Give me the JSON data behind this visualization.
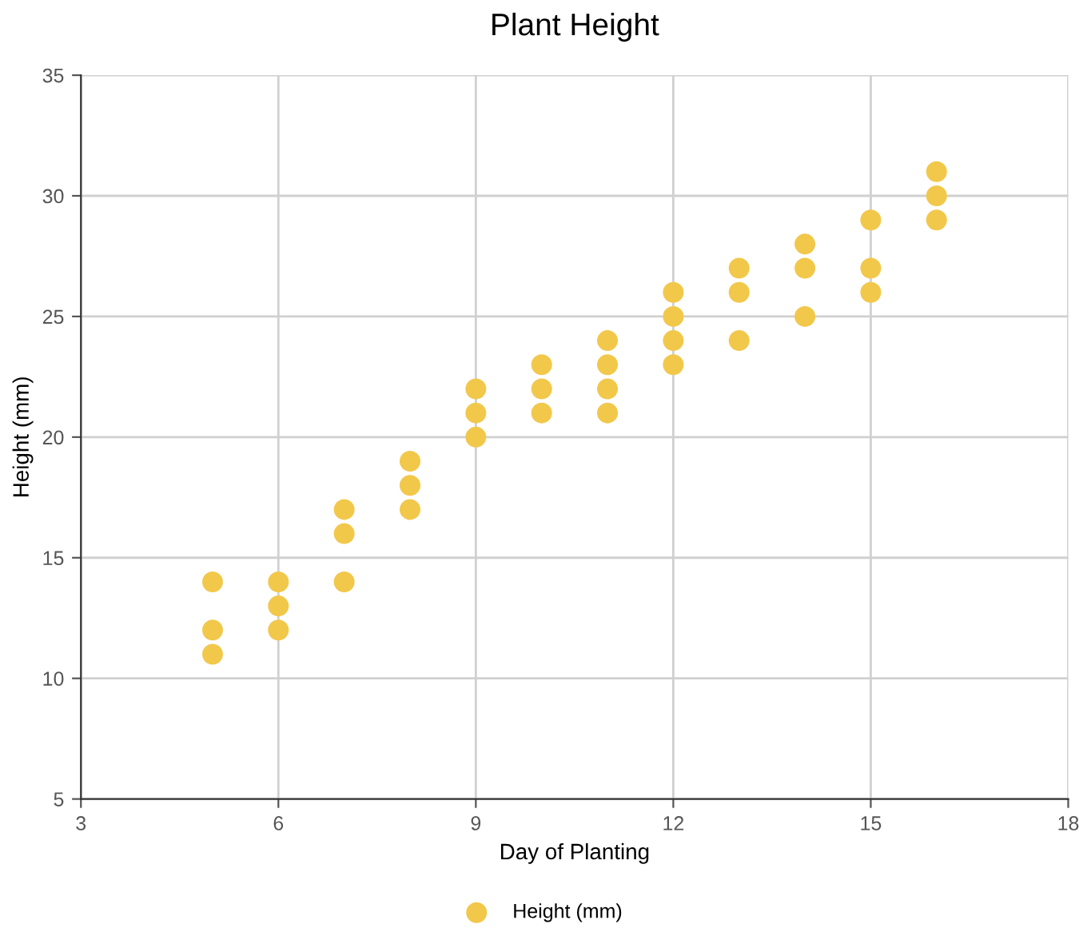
{
  "chart_data": {
    "type": "scatter",
    "title": "Plant Height",
    "xlabel": "Day of Planting",
    "ylabel": "Height (mm)",
    "series": [
      {
        "name": "Height (mm)",
        "color": "#f2c84b",
        "x": [
          5,
          5,
          5,
          6,
          6,
          6,
          7,
          7,
          7,
          8,
          8,
          8,
          9,
          9,
          9,
          10,
          10,
          10,
          11,
          11,
          11,
          11,
          12,
          12,
          12,
          12,
          13,
          13,
          13,
          14,
          14,
          14,
          15,
          15,
          15,
          16,
          16,
          16
        ],
        "values": [
          14,
          12,
          11,
          14,
          13,
          12,
          17,
          16,
          14,
          19,
          18,
          17,
          22,
          21,
          20,
          23,
          22,
          21,
          24,
          23,
          22,
          21,
          26,
          25,
          24,
          23,
          27,
          26,
          24,
          28,
          27,
          25,
          29,
          27,
          26,
          31,
          30,
          29
        ]
      }
    ],
    "xlim": [
      3,
      18
    ],
    "xticks": [
      3,
      6,
      9,
      12,
      15,
      18
    ],
    "ylim": [
      5,
      35
    ],
    "yticks": [
      5,
      10,
      15,
      20,
      25,
      30,
      35
    ],
    "grid": true,
    "legend": "bottom",
    "marker": "circle"
  }
}
